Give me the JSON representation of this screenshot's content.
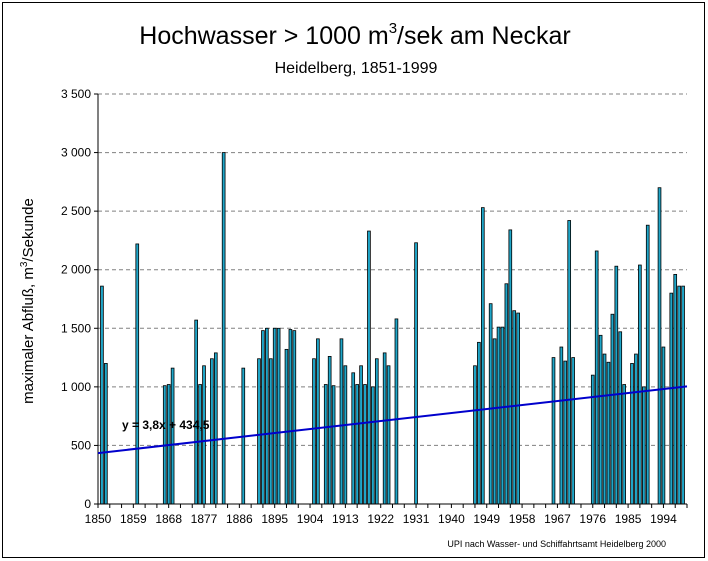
{
  "chart_data": {
    "type": "bar",
    "title_main": "Hochwasser > 1000 m",
    "title_sup": "3",
    "title_rest": "/sek am Neckar",
    "subtitle": "Heidelberg, 1851-1999",
    "ylabel_main": "maximaler Abfluß, m",
    "ylabel_sup": "3",
    "ylabel_rest": "/Sekunde",
    "source": "UPI nach Wasser- und Schiffahrtsamt Heidelberg 2000",
    "trend_label": "y = 3,8x + 434,5",
    "trend": {
      "slope": 3.8,
      "intercept": 434.5
    },
    "xlim": [
      1850,
      2000
    ],
    "ylim": [
      0,
      3500
    ],
    "y_ticks": [
      0,
      500,
      1000,
      1500,
      2000,
      2500,
      3000,
      3500
    ],
    "y_tick_labels": [
      "0",
      "500",
      "1 000",
      "1 500",
      "2 000",
      "2 500",
      "3 000",
      "3 500"
    ],
    "x_ticks": [
      1850,
      1859,
      1868,
      1877,
      1886,
      1895,
      1904,
      1913,
      1922,
      1931,
      1940,
      1949,
      1958,
      1967,
      1976,
      1985,
      1994
    ],
    "x_tick_labels": [
      "1850",
      "1859",
      "1868",
      "1877",
      "1886",
      "1895",
      "1904",
      "1913",
      "1922",
      "1931",
      "1940",
      "1949",
      "1958",
      "1967",
      "1976",
      "1985",
      "1994"
    ],
    "bar_color": "#1fa6c8",
    "trend_color": "#0000cc",
    "grid": "horizontal-dashed",
    "years": [
      1851,
      1852,
      1860,
      1867,
      1868,
      1869,
      1875,
      1876,
      1877,
      1879,
      1880,
      1882,
      1887,
      1891,
      1892,
      1893,
      1894,
      1895,
      1896,
      1898,
      1899,
      1900,
      1905,
      1906,
      1908,
      1909,
      1910,
      1912,
      1913,
      1915,
      1916,
      1917,
      1918,
      1919,
      1920,
      1921,
      1923,
      1924,
      1926,
      1931,
      1946,
      1947,
      1948,
      1950,
      1951,
      1952,
      1953,
      1954,
      1955,
      1956,
      1957,
      1966,
      1968,
      1969,
      1970,
      1971,
      1976,
      1977,
      1978,
      1979,
      1980,
      1981,
      1982,
      1983,
      1984,
      1986,
      1987,
      1988,
      1989,
      1990,
      1993,
      1994,
      1996,
      1997,
      1998,
      1999
    ],
    "values": [
      1860,
      1200,
      2220,
      1010,
      1020,
      1160,
      1570,
      1020,
      1180,
      1240,
      1290,
      3000,
      1160,
      1240,
      1480,
      1500,
      1240,
      1500,
      1500,
      1320,
      1490,
      1480,
      1240,
      1410,
      1020,
      1260,
      1010,
      1410,
      1180,
      1120,
      1020,
      1180,
      1020,
      2330,
      1000,
      1240,
      1290,
      1180,
      1580,
      2230,
      1180,
      1380,
      2530,
      1710,
      1410,
      1510,
      1510,
      1880,
      2340,
      1650,
      1630,
      1250,
      1340,
      1220,
      2420,
      1250,
      1100,
      2160,
      1440,
      1280,
      1210,
      1620,
      2030,
      1470,
      1020,
      1200,
      1280,
      2040,
      1000,
      2380,
      2700,
      1340,
      1800,
      1960,
      1860,
      1860
    ]
  }
}
